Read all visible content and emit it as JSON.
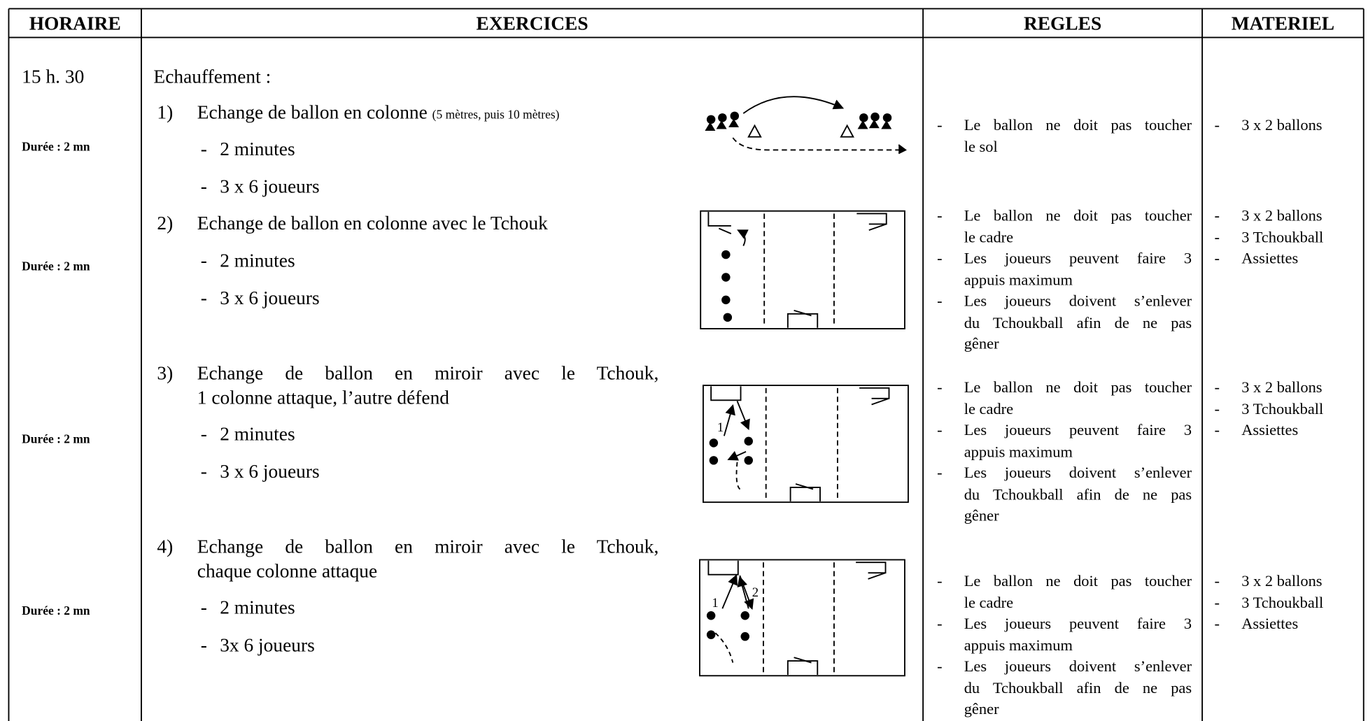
{
  "header": {
    "columns": [
      "HORAIRE",
      "EXERCICES",
      "REGLES",
      "MATERIEL"
    ]
  },
  "time": "15 h. 30",
  "intro": "Echauffement :",
  "exercises": [
    {
      "number": "1)",
      "title_lines": [
        "Echange de ballon en colonne"
      ],
      "note": "(5 mètres, puis 10 mètres)",
      "details": [
        "2 minutes",
        "3 x 6 joueurs"
      ],
      "duration": "Durée : 2 mn",
      "rules": [
        [
          "Le ballon ne doit pas toucher",
          "le sol"
        ]
      ],
      "materials": [
        "3 x 2 ballons"
      ]
    },
    {
      "number": "2)",
      "title_lines": [
        "Echange de ballon en colonne avec le Tchouk"
      ],
      "details": [
        "2 minutes",
        "3 x 6 joueurs"
      ],
      "duration": "Durée : 2 mn",
      "rules": [
        [
          "Le ballon ne doit pas toucher",
          "le cadre"
        ],
        [
          "Les joueurs peuvent faire 3",
          "appuis maximum"
        ],
        [
          "Les joueurs doivent s’enlever",
          "du Tchoukball afin de ne pas",
          "gêner"
        ]
      ],
      "materials": [
        "3 x 2 ballons",
        "3 Tchoukball",
        "Assiettes"
      ]
    },
    {
      "number": "3)",
      "title_lines": [
        "Echange de ballon en miroir avec le Tchouk,",
        "1 colonne attaque, l’autre défend"
      ],
      "details": [
        "2 minutes",
        "3 x 6 joueurs"
      ],
      "duration": "Durée : 2 mn",
      "diagram_labels": [
        "1"
      ],
      "rules": [
        [
          "Le ballon ne doit pas toucher",
          "le cadre"
        ],
        [
          "Les joueurs peuvent faire 3",
          "appuis maximum"
        ],
        [
          "Les joueurs doivent s’enlever",
          "du Tchoukball afin de ne pas",
          "gêner"
        ]
      ],
      "materials": [
        "3 x 2 ballons",
        "3 Tchoukball",
        "Assiettes"
      ]
    },
    {
      "number": "4)",
      "title_lines": [
        "Echange de ballon en miroir avec le Tchouk,",
        "chaque colonne attaque"
      ],
      "details": [
        "2 minutes",
        "3x 6 joueurs"
      ],
      "duration": "Durée : 2 mn",
      "diagram_labels": [
        "1",
        "2"
      ],
      "rules": [
        [
          "Le ballon ne doit pas toucher",
          "le cadre"
        ],
        [
          "Les joueurs peuvent faire 3",
          "appuis maximum"
        ],
        [
          "Les joueurs doivent s’enlever",
          "du Tchoukball afin de ne pas",
          "gêner"
        ]
      ],
      "materials": [
        "3 x 2 ballons",
        "3 Tchoukball",
        "Assiettes"
      ]
    }
  ]
}
